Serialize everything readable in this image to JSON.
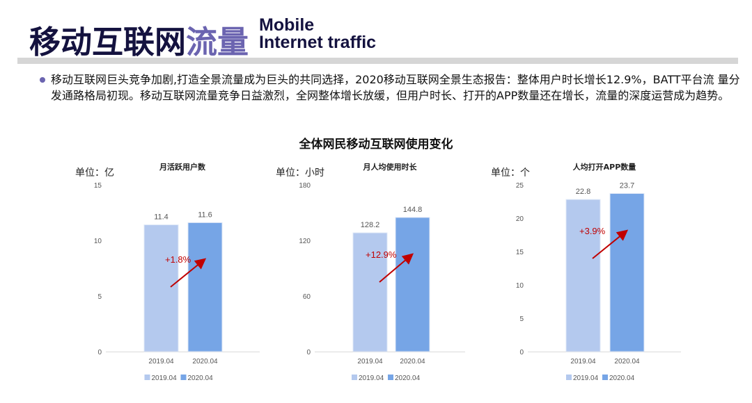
{
  "header": {
    "title_main": "移动互联网",
    "title_highlight": "流量",
    "title_en_line1": "Mobile",
    "title_en_line2": "Internet traffic"
  },
  "body_text": "移动互联网巨头竞争加剧,打造全景流量成为巨头的共同选择，2020移动互联网全景生态报告：整体用户时长增长12.9%，BATT平台流 量分发通路格局初现。移动互联网流量竞争日益激烈，全网整体增长放缓，但用户时长、打开的APP数量还在增长，流量的深度运营成为趋势。",
  "section_title": "全体网民移动互联网使用变化",
  "colors": {
    "series_2019": "#b4c9ee",
    "series_2020": "#76a5e6",
    "arrow": "#c00000",
    "accent": "#6b64b0"
  },
  "chart_data": [
    {
      "type": "bar",
      "title": "月活跃用户数",
      "unit_label": "单位：亿",
      "categories": [
        "2019.04",
        "2020.04"
      ],
      "values": [
        11.4,
        11.6
      ],
      "ylim": [
        0,
        15
      ],
      "yticks": [
        0,
        5,
        10,
        15
      ],
      "growth_annotation": "+1.8%",
      "legend": [
        "2019.04",
        "2020.04"
      ],
      "legend_position": "bottom",
      "grid": false
    },
    {
      "type": "bar",
      "title": "月人均使用时长",
      "unit_label": "单位：小时",
      "categories": [
        "2019.04",
        "2020.04"
      ],
      "values": [
        128.2,
        144.8
      ],
      "ylim": [
        0,
        180
      ],
      "yticks": [
        0,
        60,
        120,
        180
      ],
      "growth_annotation": "+12.9%",
      "legend": [
        "2019.04",
        "2020.04"
      ],
      "legend_position": "bottom",
      "grid": false
    },
    {
      "type": "bar",
      "title": "人均打开APP数量",
      "unit_label": "单位：个",
      "categories": [
        "2019.04",
        "2020.04"
      ],
      "values": [
        22.8,
        23.7
      ],
      "ylim": [
        0,
        25
      ],
      "yticks": [
        0,
        5,
        10,
        15,
        20,
        25
      ],
      "growth_annotation": "+3.9%",
      "legend": [
        "2019.04",
        "2020.04"
      ],
      "legend_position": "bottom",
      "grid": false
    }
  ]
}
